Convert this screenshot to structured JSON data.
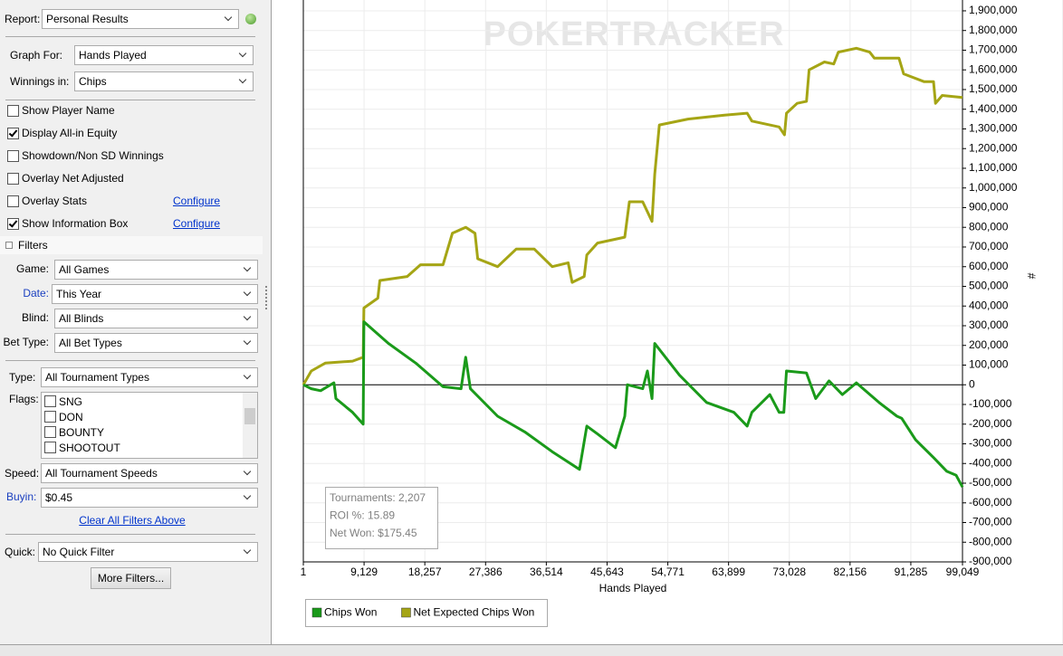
{
  "sidebar": {
    "report": {
      "label": "Report:",
      "value": "Personal Results"
    },
    "graph_for": {
      "label": "Graph For:",
      "value": "Hands Played"
    },
    "winnings_in": {
      "label": "Winnings in:",
      "value": "Chips"
    },
    "options": [
      {
        "label": "Show Player Name",
        "checked": false
      },
      {
        "label": "Display All-in Equity",
        "checked": true
      },
      {
        "label": "Showdown/Non SD Winnings",
        "checked": false
      },
      {
        "label": "Overlay Net Adjusted",
        "checked": false
      },
      {
        "label": "Overlay Stats",
        "checked": false,
        "link": "Configure"
      },
      {
        "label": "Show Information Box",
        "checked": true,
        "link": "Configure"
      }
    ],
    "filters": {
      "title": "Filters",
      "fields": [
        {
          "label": "Game:",
          "value": "All Games"
        },
        {
          "label": "Date:",
          "value": "This Year"
        },
        {
          "label": "Blind:",
          "value": "All Blinds"
        },
        {
          "label": "Bet Type:",
          "value": "All Bet Types"
        }
      ],
      "type": {
        "label": "Type:",
        "value": "All Tournament Types"
      },
      "flags": {
        "label": "Flags:",
        "items": [
          {
            "label": "SNG",
            "checked": false
          },
          {
            "label": "DON",
            "checked": false
          },
          {
            "label": "BOUNTY",
            "checked": false
          },
          {
            "label": "SHOOTOUT",
            "checked": false
          }
        ]
      },
      "speed": {
        "label": "Speed:",
        "value": "All Tournament Speeds"
      },
      "buyin": {
        "label": "Buyin:",
        "value": "$0.45"
      },
      "clear_link": "Clear All Filters Above"
    },
    "quick": {
      "label": "Quick:",
      "value": "No Quick Filter"
    },
    "more_button": "More Filters..."
  },
  "chart_data": {
    "type": "line",
    "watermark": "POKERTRACKER",
    "x_label": "Hands Played",
    "y_label": "#",
    "xlim": [
      1,
      99049
    ],
    "xticks": [
      1,
      {
        "value": 9129,
        "label": "9,129"
      },
      {
        "value": 18257,
        "label": "18,257"
      },
      {
        "value": 27386,
        "label": "27,386"
      },
      {
        "value": 36514,
        "label": "36,514"
      },
      {
        "value": 45643,
        "label": "45,643"
      },
      {
        "value": 54771,
        "label": "54,771"
      },
      {
        "value": 63899,
        "label": "63,899"
      },
      {
        "value": 73028,
        "label": "73,028"
      },
      {
        "value": 82156,
        "label": "82,156"
      },
      {
        "value": 91285,
        "label": "91,285"
      },
      {
        "value": 99049,
        "label": "99,049"
      }
    ],
    "ylim": [
      -900000,
      1955000
    ],
    "yticks": [
      {
        "value": -900000,
        "label": "-900,000"
      },
      {
        "value": -800000,
        "label": "-800,000"
      },
      {
        "value": -700000,
        "label": "-700,000"
      },
      {
        "value": -600000,
        "label": "-600,000"
      },
      {
        "value": -500000,
        "label": "-500,000"
      },
      {
        "value": -400000,
        "label": "-400,000"
      },
      {
        "value": -300000,
        "label": "-300,000"
      },
      {
        "value": -200000,
        "label": "-200,000"
      },
      {
        "value": -100000,
        "label": "-100,000"
      },
      0,
      {
        "value": 100000,
        "label": "100,000"
      },
      {
        "value": 200000,
        "label": "200,000"
      },
      {
        "value": 300000,
        "label": "300,000"
      },
      {
        "value": 400000,
        "label": "400,000"
      },
      {
        "value": 500000,
        "label": "500,000"
      },
      {
        "value": 600000,
        "label": "600,000"
      },
      {
        "value": 700000,
        "label": "700,000"
      },
      {
        "value": 800000,
        "label": "800,000"
      },
      {
        "value": 900000,
        "label": "900,000"
      },
      {
        "value": 1000000,
        "label": "1,000,000"
      },
      {
        "value": 1100000,
        "label": "1,100,000"
      },
      {
        "value": 1200000,
        "label": "1,200,000"
      },
      {
        "value": 1300000,
        "label": "1,300,000"
      },
      {
        "value": 1400000,
        "label": "1,400,000"
      },
      {
        "value": 1500000,
        "label": "1,500,000"
      },
      {
        "value": 1600000,
        "label": "1,600,000"
      },
      {
        "value": 1700000,
        "label": "1,700,000"
      },
      {
        "value": 1800000,
        "label": "1,800,000"
      },
      {
        "value": 1900000,
        "label": "1,900,000"
      }
    ],
    "grid": true,
    "zero_line": true,
    "legend": "bottom-left",
    "series": [
      {
        "name": "Chips Won",
        "color": "#1a9a1a",
        "x": [
          1,
          1200,
          2600,
          4600,
          4900,
          7400,
          9000,
          9100,
          12800,
          16900,
          21000,
          23700,
          24400,
          25100,
          29200,
          33300,
          37400,
          41500,
          42600,
          44200,
          46900,
          48300,
          48700,
          51000,
          51700,
          52400,
          52800,
          56500,
          60600,
          64700,
          66700,
          67400,
          70100,
          71500,
          72200,
          72600,
          75600,
          77000,
          79000,
          81000,
          83100,
          86500,
          89200,
          89900,
          92000,
          94700,
          96700,
          98100,
          99049
        ],
        "values": [
          0,
          -20000,
          -30000,
          10000,
          -70000,
          -140000,
          -200000,
          320000,
          210000,
          110000,
          -10000,
          -20000,
          140000,
          -20000,
          -160000,
          -240000,
          -340000,
          -430000,
          -210000,
          -250000,
          -320000,
          -160000,
          0,
          -20000,
          70000,
          -70000,
          210000,
          50000,
          -90000,
          -140000,
          -210000,
          -140000,
          -50000,
          -140000,
          -140000,
          70000,
          60000,
          -70000,
          20000,
          -50000,
          10000,
          -90000,
          -160000,
          -170000,
          -280000,
          -370000,
          -440000,
          -460000,
          -520000
        ]
      },
      {
        "name": "Net Expected Chips Won",
        "color": "#a5a515",
        "x": [
          1,
          1200,
          3300,
          7400,
          9000,
          9100,
          11200,
          11500,
          15600,
          17600,
          21000,
          22400,
          24400,
          25800,
          26200,
          29200,
          32000,
          34700,
          37400,
          39800,
          40400,
          42200,
          42600,
          44200,
          48300,
          49000,
          51000,
          52400,
          52800,
          53500,
          57800,
          63300,
          66700,
          67400,
          71500,
          72300,
          72600,
          74200,
          75600,
          76000,
          78300,
          79700,
          80400,
          83100,
          85100,
          85800,
          89500,
          90200,
          93300,
          94700,
          95000,
          96000,
          99049
        ],
        "values": [
          0,
          70000,
          110000,
          120000,
          140000,
          390000,
          440000,
          530000,
          550000,
          610000,
          610000,
          770000,
          800000,
          770000,
          640000,
          600000,
          690000,
          690000,
          600000,
          620000,
          520000,
          550000,
          660000,
          720000,
          750000,
          930000,
          930000,
          830000,
          1070000,
          1320000,
          1350000,
          1370000,
          1380000,
          1340000,
          1310000,
          1270000,
          1380000,
          1430000,
          1440000,
          1600000,
          1640000,
          1630000,
          1690000,
          1710000,
          1690000,
          1660000,
          1660000,
          1580000,
          1540000,
          1540000,
          1430000,
          1470000,
          1460000
        ]
      }
    ],
    "info_box": [
      "Tournaments: 2,207",
      "ROI %: 15.89",
      "Net Won: $175.45"
    ]
  }
}
